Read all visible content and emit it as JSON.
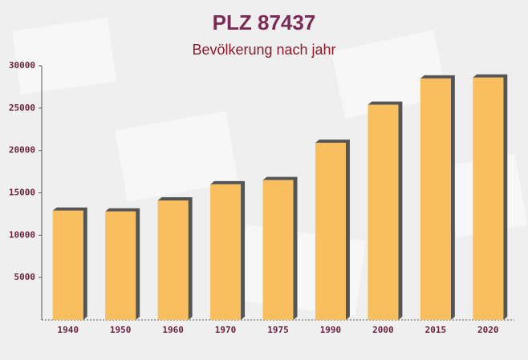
{
  "chart_data": {
    "type": "bar",
    "title": "PLZ 87437",
    "subtitle": "Bevölkerung nach jahr",
    "categories": [
      "1940",
      "1950",
      "1960",
      "1970",
      "1975",
      "1990",
      "2000",
      "2015",
      "2020"
    ],
    "values": [
      12900,
      12800,
      14100,
      16000,
      16500,
      20900,
      25400,
      28500,
      28600
    ],
    "color": "#f9bf5e",
    "ylim": [
      0,
      30000
    ],
    "yticks": [
      5000,
      10000,
      15000,
      20000,
      25000,
      30000
    ],
    "grid": false
  }
}
